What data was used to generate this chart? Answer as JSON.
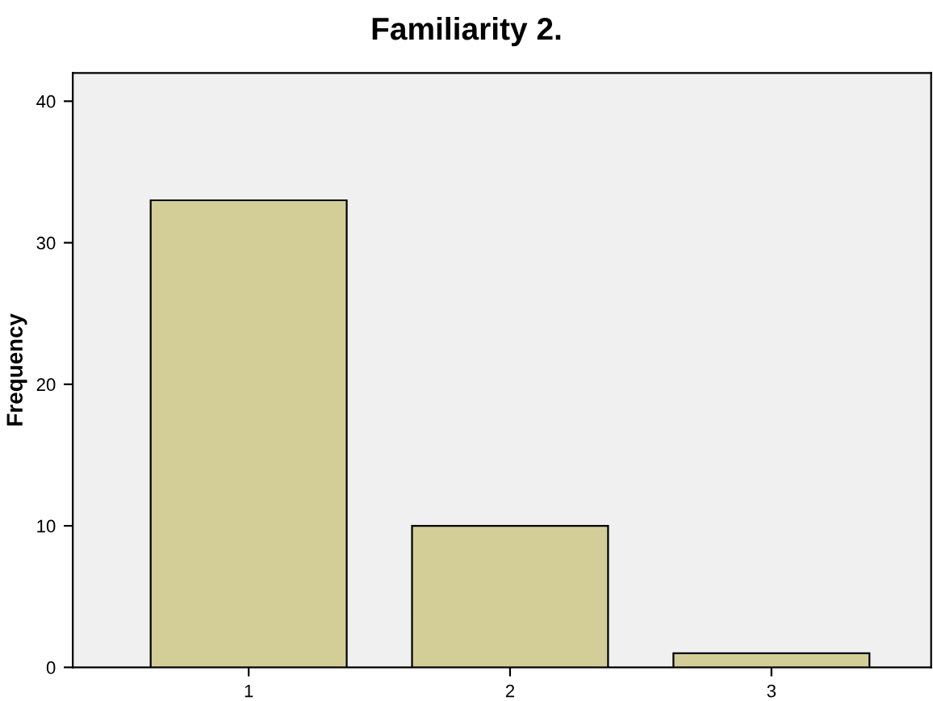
{
  "chart_data": {
    "type": "bar",
    "title": "Familiarity 2.",
    "ylabel": "Frequency",
    "categories": [
      "1",
      "2",
      "3"
    ],
    "values": [
      33,
      10,
      1
    ],
    "color": "#d3ce98",
    "ylim": [
      0,
      42
    ],
    "yticks": [
      0,
      10,
      20,
      30,
      40
    ],
    "grid": false,
    "legend": false
  }
}
